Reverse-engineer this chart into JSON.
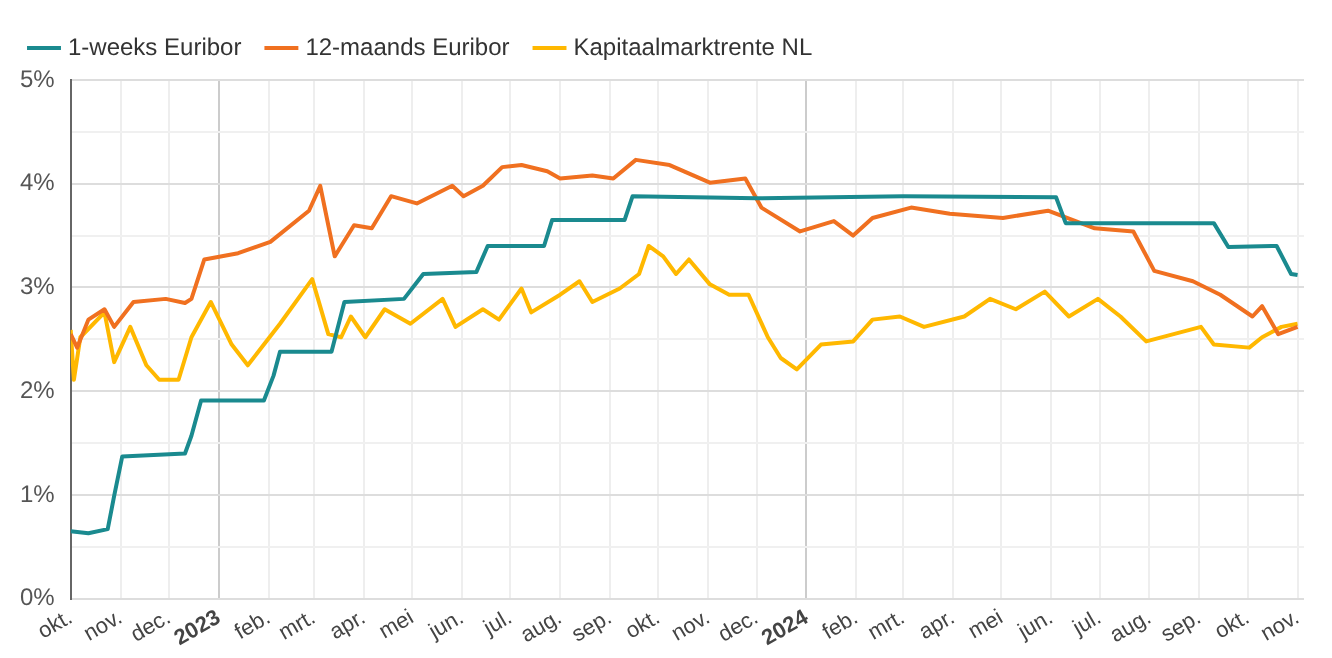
{
  "chart_data": {
    "type": "line",
    "legend": "top left",
    "grid": true,
    "marker": "none",
    "line_style": "solid",
    "xlim": [
      "2022-10-01",
      "2024-11-05"
    ],
    "xticks": [
      {
        "value": "2022-10-01",
        "label": "okt."
      },
      {
        "value": "2022-11-01",
        "label": "nov."
      },
      {
        "value": "2022-12-01",
        "label": "dec."
      },
      {
        "value": "2023-01-01",
        "label": "2023"
      },
      {
        "value": "2023-02-01",
        "label": "feb."
      },
      {
        "value": "2023-03-01",
        "label": "mrt."
      },
      {
        "value": "2023-04-01",
        "label": "apr."
      },
      {
        "value": "2023-05-01",
        "label": "mei"
      },
      {
        "value": "2023-06-01",
        "label": "jun."
      },
      {
        "value": "2023-07-01",
        "label": "jul."
      },
      {
        "value": "2023-08-01",
        "label": "aug."
      },
      {
        "value": "2023-09-01",
        "label": "sep."
      },
      {
        "value": "2023-10-01",
        "label": "okt."
      },
      {
        "value": "2023-11-01",
        "label": "nov."
      },
      {
        "value": "2023-12-01",
        "label": "dec."
      },
      {
        "value": "2024-01-01",
        "label": "2024"
      },
      {
        "value": "2024-02-01",
        "label": "feb."
      },
      {
        "value": "2024-03-01",
        "label": "mrt."
      },
      {
        "value": "2024-04-01",
        "label": "apr."
      },
      {
        "value": "2024-05-01",
        "label": "mei"
      },
      {
        "value": "2024-06-01",
        "label": "jun."
      },
      {
        "value": "2024-07-01",
        "label": "jul."
      },
      {
        "value": "2024-08-01",
        "label": "aug."
      },
      {
        "value": "2024-09-01",
        "label": "sep."
      },
      {
        "value": "2024-10-01",
        "label": "okt."
      },
      {
        "value": "2024-11-01",
        "label": "nov."
      }
    ],
    "ylim": [
      0,
      5
    ],
    "yticks": [
      {
        "value": 0,
        "label": "0%"
      },
      {
        "value": 0.5,
        "label": null
      },
      {
        "value": 1,
        "label": "1%"
      },
      {
        "value": 1.5,
        "label": null
      },
      {
        "value": 2,
        "label": "2%"
      },
      {
        "value": 2.5,
        "label": null
      },
      {
        "value": 3,
        "label": "3%"
      },
      {
        "value": 3.5,
        "label": null
      },
      {
        "value": 4,
        "label": "4%"
      },
      {
        "value": 4.5,
        "label": null
      },
      {
        "value": 5,
        "label": "5%"
      }
    ],
    "series": [
      {
        "name": "1-weeks Euribor",
        "color": "#1a8a8f",
        "x": [
          "2022-10-01",
          "2022-10-12",
          "2022-10-24",
          "2022-10-28",
          "2022-11-02",
          "2022-12-11",
          "2022-12-15",
          "2022-12-21",
          "2023-01-29",
          "2023-02-04",
          "2023-02-08",
          "2023-03-12",
          "2023-03-20",
          "2023-04-26",
          "2023-05-08",
          "2023-06-10",
          "2023-06-17",
          "2023-07-22",
          "2023-07-27",
          "2023-09-10",
          "2023-09-15",
          "2023-12-01",
          "2024-03-01",
          "2024-06-04",
          "2024-06-10",
          "2024-09-10",
          "2024-09-19",
          "2024-10-19",
          "2024-10-28",
          "2024-11-01"
        ],
        "values": [
          0.65,
          0.63,
          0.67,
          0.99,
          1.37,
          1.4,
          1.57,
          1.91,
          1.91,
          2.15,
          2.38,
          2.38,
          2.86,
          2.89,
          3.13,
          3.15,
          3.4,
          3.4,
          3.65,
          3.65,
          3.88,
          3.86,
          3.88,
          3.87,
          3.62,
          3.62,
          3.39,
          3.4,
          3.13,
          3.12
        ]
      },
      {
        "name": "12-maands Euribor",
        "color": "#f07020",
        "x": [
          "2022-10-01",
          "2022-10-05",
          "2022-10-12",
          "2022-10-22",
          "2022-10-28",
          "2022-11-09",
          "2022-11-29",
          "2022-12-11",
          "2022-12-15",
          "2022-12-23",
          "2023-01-13",
          "2023-02-02",
          "2023-02-26",
          "2023-03-05",
          "2023-03-10",
          "2023-03-14",
          "2023-03-18",
          "2023-03-26",
          "2023-04-06",
          "2023-04-18",
          "2023-05-04",
          "2023-05-26",
          "2023-06-02",
          "2023-06-14",
          "2023-06-26",
          "2023-07-08",
          "2023-07-24",
          "2023-08-01",
          "2023-08-21",
          "2023-09-03",
          "2023-09-17",
          "2023-10-08",
          "2023-11-02",
          "2023-11-24",
          "2023-12-04",
          "2023-12-28",
          "2024-01-18",
          "2024-01-30",
          "2024-02-11",
          "2024-03-06",
          "2024-03-30",
          "2024-05-02",
          "2024-05-30",
          "2024-06-28",
          "2024-07-22",
          "2024-08-04",
          "2024-08-28",
          "2024-09-14",
          "2024-10-04",
          "2024-10-10",
          "2024-10-20",
          "2024-11-01"
        ],
        "values": [
          2.55,
          2.42,
          2.69,
          2.79,
          2.62,
          2.86,
          2.89,
          2.85,
          2.89,
          3.27,
          3.33,
          3.44,
          3.74,
          3.98,
          3.6,
          3.3,
          3.4,
          3.6,
          3.57,
          3.88,
          3.81,
          3.98,
          3.88,
          3.98,
          4.16,
          4.18,
          4.12,
          4.05,
          4.08,
          4.05,
          4.23,
          4.18,
          4.01,
          4.05,
          3.77,
          3.54,
          3.64,
          3.5,
          3.67,
          3.77,
          3.71,
          3.67,
          3.74,
          3.57,
          3.54,
          3.16,
          3.06,
          2.93,
          2.72,
          2.82,
          2.55,
          2.62
        ]
      },
      {
        "name": "Kapitaalmarktrente NL",
        "color": "#ffb800",
        "x": [
          "2022-10-01",
          "2022-10-03",
          "2022-10-07",
          "2022-10-22",
          "2022-10-28",
          "2022-11-07",
          "2022-11-17",
          "2022-11-25",
          "2022-12-07",
          "2022-12-15",
          "2022-12-27",
          "2023-01-09",
          "2023-01-19",
          "2023-01-29",
          "2023-02-08",
          "2023-02-28",
          "2023-03-10",
          "2023-03-18",
          "2023-03-24",
          "2023-04-02",
          "2023-04-14",
          "2023-04-30",
          "2023-05-20",
          "2023-05-28",
          "2023-06-14",
          "2023-06-24",
          "2023-07-08",
          "2023-07-14",
          "2023-08-01",
          "2023-08-13",
          "2023-08-21",
          "2023-09-07",
          "2023-09-19",
          "2023-09-25",
          "2023-10-04",
          "2023-10-12",
          "2023-10-20",
          "2023-11-02",
          "2023-11-14",
          "2023-11-26",
          "2023-12-08",
          "2023-12-16",
          "2023-12-26",
          "2024-01-10",
          "2024-01-30",
          "2024-02-11",
          "2024-02-28",
          "2024-03-14",
          "2024-04-08",
          "2024-04-24",
          "2024-05-10",
          "2024-05-28",
          "2024-06-12",
          "2024-06-30",
          "2024-07-14",
          "2024-07-30",
          "2024-08-16",
          "2024-09-02",
          "2024-09-10",
          "2024-10-02",
          "2024-10-10",
          "2024-10-22",
          "2024-11-01"
        ],
        "values": [
          2.59,
          2.11,
          2.52,
          2.76,
          2.28,
          2.62,
          2.25,
          2.11,
          2.11,
          2.52,
          2.86,
          2.45,
          2.25,
          2.45,
          2.65,
          3.08,
          2.55,
          2.52,
          2.72,
          2.52,
          2.79,
          2.65,
          2.89,
          2.62,
          2.79,
          2.69,
          2.99,
          2.76,
          2.93,
          3.06,
          2.86,
          2.99,
          3.13,
          3.4,
          3.3,
          3.13,
          3.27,
          3.03,
          2.93,
          2.93,
          2.52,
          2.32,
          2.21,
          2.45,
          2.48,
          2.69,
          2.72,
          2.62,
          2.72,
          2.89,
          2.79,
          2.96,
          2.72,
          2.89,
          2.72,
          2.48,
          2.55,
          2.62,
          2.45,
          2.42,
          2.52,
          2.62,
          2.65
        ]
      }
    ]
  }
}
